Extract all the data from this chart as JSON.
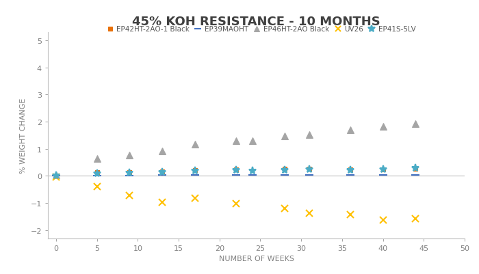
{
  "title": "45% KOH RESISTANCE - 10 MONTHS",
  "xlabel": "NUMBER OF WEEKS",
  "ylabel": "% WEIGHT CHANGE",
  "xlim": [
    -1,
    50
  ],
  "ylim": [
    -2.3,
    5.3
  ],
  "yticks": [
    -2,
    -1,
    0,
    1,
    2,
    3,
    4,
    5
  ],
  "xticks": [
    0,
    5,
    10,
    15,
    20,
    25,
    30,
    35,
    40,
    45,
    50
  ],
  "series": {
    "EP42HT-2AO-1 Black": {
      "x": [
        0,
        5,
        9,
        13,
        17,
        22,
        28,
        31,
        36,
        40,
        44
      ],
      "y": [
        0.02,
        0.13,
        0.15,
        0.17,
        0.22,
        0.25,
        0.27,
        0.27,
        0.25,
        0.25,
        0.27
      ],
      "color": "#E8700A",
      "marker": "s",
      "markersize": 5
    },
    "EP39MAOHT": {
      "x": [
        0,
        5,
        9,
        13,
        17,
        22,
        24,
        28,
        31,
        36,
        40,
        44
      ],
      "y": [
        0.0,
        0.02,
        0.02,
        0.04,
        0.04,
        0.04,
        0.04,
        0.04,
        0.04,
        0.04,
        0.04,
        0.04
      ],
      "color": "#4472C4",
      "marker": "_",
      "markersize": 8
    },
    "EP46HT-2AO Black": {
      "x": [
        0,
        5,
        9,
        13,
        17,
        22,
        24,
        28,
        31,
        36,
        40,
        44
      ],
      "y": [
        0.05,
        0.65,
        0.78,
        0.92,
        1.18,
        1.3,
        1.3,
        1.48,
        1.52,
        1.7,
        1.82,
        1.92
      ],
      "color": "#A5A5A5",
      "marker": "^",
      "markersize": 7
    },
    "UV26": {
      "x": [
        0,
        5,
        9,
        13,
        17,
        22,
        28,
        31,
        36,
        40,
        44
      ],
      "y": [
        -0.05,
        -0.38,
        -0.72,
        -0.98,
        -0.82,
        -1.02,
        -1.2,
        -1.38,
        -1.42,
        -1.62,
        -1.58
      ],
      "color": "#FFC000",
      "marker": "x",
      "markersize": 7
    },
    "EP41S-5LV": {
      "x": [
        0,
        5,
        9,
        13,
        17,
        22,
        24,
        28,
        31,
        36,
        40,
        44
      ],
      "y": [
        0.02,
        0.1,
        0.12,
        0.15,
        0.18,
        0.22,
        0.2,
        0.22,
        0.25,
        0.22,
        0.25,
        0.28
      ],
      "color": "#4BACC6",
      "marker": "*",
      "markersize": 8
    }
  },
  "legend_order": [
    "EP42HT-2AO-1 Black",
    "EP39MAOHT",
    "EP46HT-2AO Black",
    "UV26",
    "EP41S-5LV"
  ],
  "background_color": "#FFFFFF",
  "title_fontsize": 13,
  "label_fontsize": 8,
  "tick_fontsize": 8,
  "legend_fontsize": 7.5
}
